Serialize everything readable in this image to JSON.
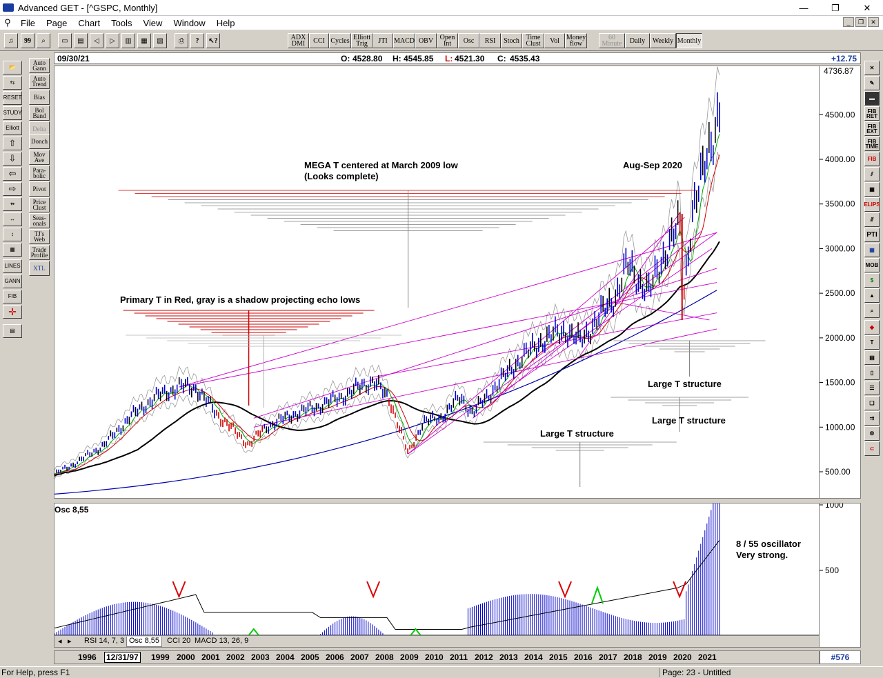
{
  "window": {
    "title": "Advanced GET - [^GSPC, Monthly]",
    "minimize": "—",
    "restore": "❐",
    "close": "✕"
  },
  "menu": [
    "File",
    "Page",
    "Chart",
    "Tools",
    "View",
    "Window",
    "Help"
  ],
  "toolbar": {
    "indicators": [
      "ADX DMI",
      "CCI",
      "Cycles",
      "Elliott Trig",
      "JTI",
      "MACD",
      "OBV",
      "Open Int",
      "Osc",
      "RSI",
      "Stoch",
      "Time Clust",
      "Vol",
      "Money flow"
    ],
    "timeframes": [
      "60 Minute",
      "Daily",
      "Weekly",
      "Monthly"
    ]
  },
  "left_indicator_buttons": [
    "Auto Gann",
    "Auto Trend",
    "Bias",
    "Bol Band",
    "Delta",
    "Donch",
    "Mov Ave",
    "Para-bolic",
    "Pivot",
    "Price Clust",
    "Seas-onals",
    "TJ's Web",
    "Trade Profile",
    "XTL"
  ],
  "left_tool_labels": [
    "RESET",
    "STUDY",
    "Elliott",
    "LINES",
    "GANN",
    "FIB"
  ],
  "right_tool_labels": [
    "FIB RET",
    "FIB EXT",
    "FIB TIME",
    "FIB",
    "ELIPS",
    "PTI",
    "MOB"
  ],
  "info": {
    "date": "09/30/21",
    "open_label": "O:",
    "open": "4528.80",
    "high_label": "H:",
    "high": "4545.85",
    "low_label": "L:",
    "low": "4521.30",
    "close_label": "C:",
    "close": "4535.43",
    "change": "+12.75"
  },
  "price_scale": {
    "last": "4736.87",
    "ticks": [
      "4500.00",
      "4000.00",
      "3500.00",
      "3000.00",
      "2500.00",
      "2000.00",
      "1500.00",
      "1000.00",
      "500.00"
    ]
  },
  "annotations": {
    "mega_t_line1": "MEGA T centered at March 2009 low",
    "mega_t_line2": "(Looks complete)",
    "aug_sep": "Aug-Sep 2020",
    "primary_t": "Primary T in Red, gray is a shadow projecting echo lows",
    "large_t_1": "Large T structure",
    "large_t_2": "Large T structure",
    "large_t_3": "Large T structure",
    "osc_note_1": "8 / 55 oscillator",
    "osc_note_2": "Very strong."
  },
  "oscillator": {
    "label": "Osc 8,55",
    "ticks": [
      "1000",
      "500"
    ]
  },
  "osc_tabs": [
    "RSI 14, 7, 3",
    "Osc 8,55",
    "CCI 20",
    "MACD 13, 26, 9"
  ],
  "time_axis": {
    "years": [
      "1996",
      "1999",
      "2000",
      "2001",
      "2002",
      "2003",
      "2004",
      "2005",
      "2006",
      "2007",
      "2008",
      "2009",
      "2010",
      "2011",
      "2012",
      "2013",
      "2014",
      "2015",
      "2016",
      "2017",
      "2018",
      "2019",
      "2020",
      "2021"
    ],
    "cursor_date": "12/31/97"
  },
  "bar_count": "#576",
  "status": {
    "help": "For Help, press F1",
    "page": "Page: 23 - Untitled"
  },
  "colors": {
    "price_bar": "#0000cc",
    "down_bar": "#cc0000",
    "mega_t": "#cc0000",
    "shadow": "#808080",
    "trendline": "#cc00cc",
    "ma_slow": "#000000",
    "ma_long": "#0000aa",
    "ma_fast_red": "#cc0000",
    "ma_fast_green": "#00aa00",
    "osc_bar": "#0000cc",
    "arrow_sell": "#dd0000",
    "arrow_buy": "#00cc00"
  },
  "chart_data": {
    "type": "line",
    "title": "",
    "x_range": [
      "1995",
      "2021-09"
    ],
    "ylim": [
      250,
      4800
    ],
    "series": [
      {
        "x": [
          1995.0,
          1996.0,
          1997.0,
          1998.0,
          1999.0,
          2000.0,
          2000.7,
          2001.5,
          2002.8,
          2003.5,
          2004.5,
          2005.5,
          2006.5,
          2007.8,
          2008.5,
          2009.2,
          2009.8,
          2010.5,
          2011.3,
          2011.8,
          2012.5,
          2013.5,
          2014.5,
          2015.5,
          2016.1,
          2016.8,
          2017.5,
          2018.0,
          2018.9,
          2019.5,
          2020.1,
          2020.25,
          2020.6,
          2020.9,
          2021.3,
          2021.7
        ],
        "values": [
          470,
          620,
          800,
          1100,
          1320,
          1450,
          1430,
          1150,
          800,
          1000,
          1130,
          1220,
          1330,
          1520,
          1280,
          700,
          1050,
          1100,
          1330,
          1150,
          1380,
          1700,
          1950,
          2080,
          1950,
          2200,
          2450,
          2800,
          2500,
          2950,
          3250,
          2450,
          3400,
          3650,
          4150,
          4535
        ]
      }
    ],
    "markers": {
      "sell_arrows_x": [
        2000.0,
        2007.8,
        2015.5,
        2020.1
      ],
      "buy_arrows_x": [
        2003.0,
        2009.5,
        2016.8
      ]
    }
  }
}
